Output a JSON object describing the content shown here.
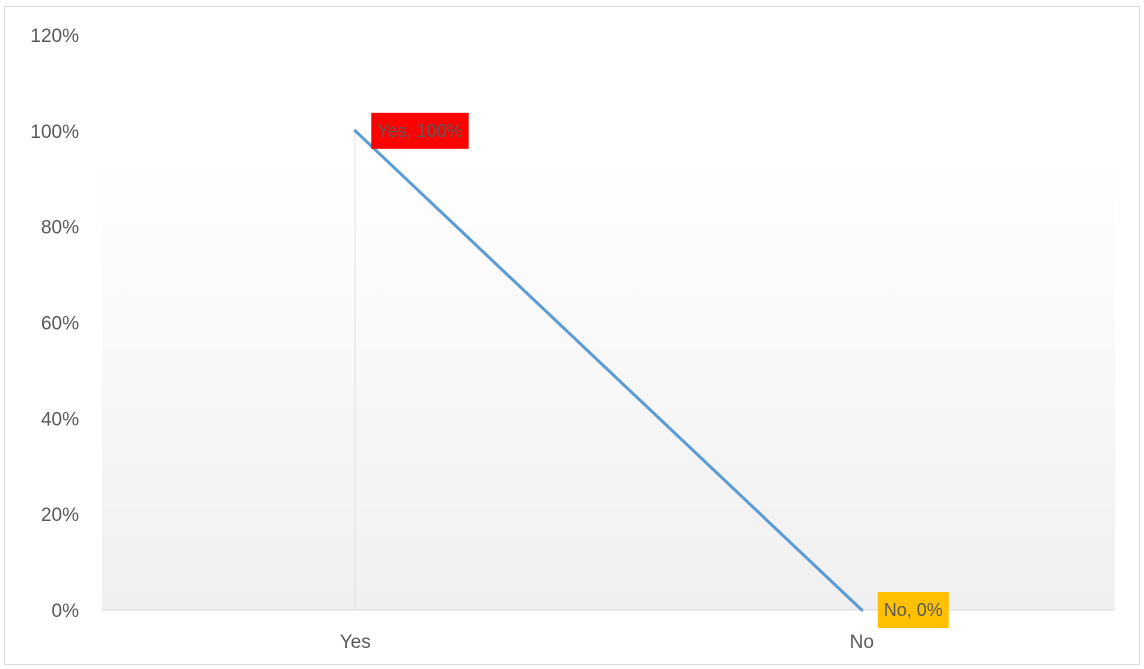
{
  "chart_data": {
    "type": "line",
    "categories": [
      "Yes",
      "No"
    ],
    "series": [
      {
        "values": [
          100,
          0
        ],
        "color": "#5b9bd5"
      }
    ],
    "ylim": [
      0,
      120
    ],
    "yticks": [
      0,
      20,
      40,
      60,
      80,
      100,
      120
    ],
    "ytick_labels": [
      "0%",
      "20%",
      "40%",
      "60%",
      "80%",
      "100%",
      "120%"
    ],
    "data_labels": [
      {
        "text": "Yes, 100%",
        "background": "#ff0000"
      },
      {
        "text": "No, 0%",
        "background": "#ffc000"
      }
    ],
    "grid": false,
    "legend": "none"
  }
}
